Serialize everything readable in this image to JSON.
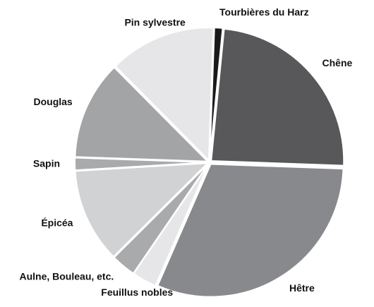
{
  "chart_data": {
    "type": "pie",
    "categories": [
      "Tourbières du Harz",
      "Chêne",
      "Hêtre",
      "Feuillus nobles",
      "Aulne, Bouleau, etc.",
      "Épicéa",
      "Sapin",
      "Douglas",
      "Pin sylvestre"
    ],
    "values": [
      1,
      24,
      31,
      3,
      3,
      11.5,
      1.5,
      12,
      13
    ],
    "colors": [
      "#1a1a1a",
      "#58585a",
      "#88898c",
      "#e6e6e8",
      "#a9aaac",
      "#d1d2d3",
      "#a9aaac",
      "#a3a4a6",
      "#e6e6e8"
    ]
  }
}
